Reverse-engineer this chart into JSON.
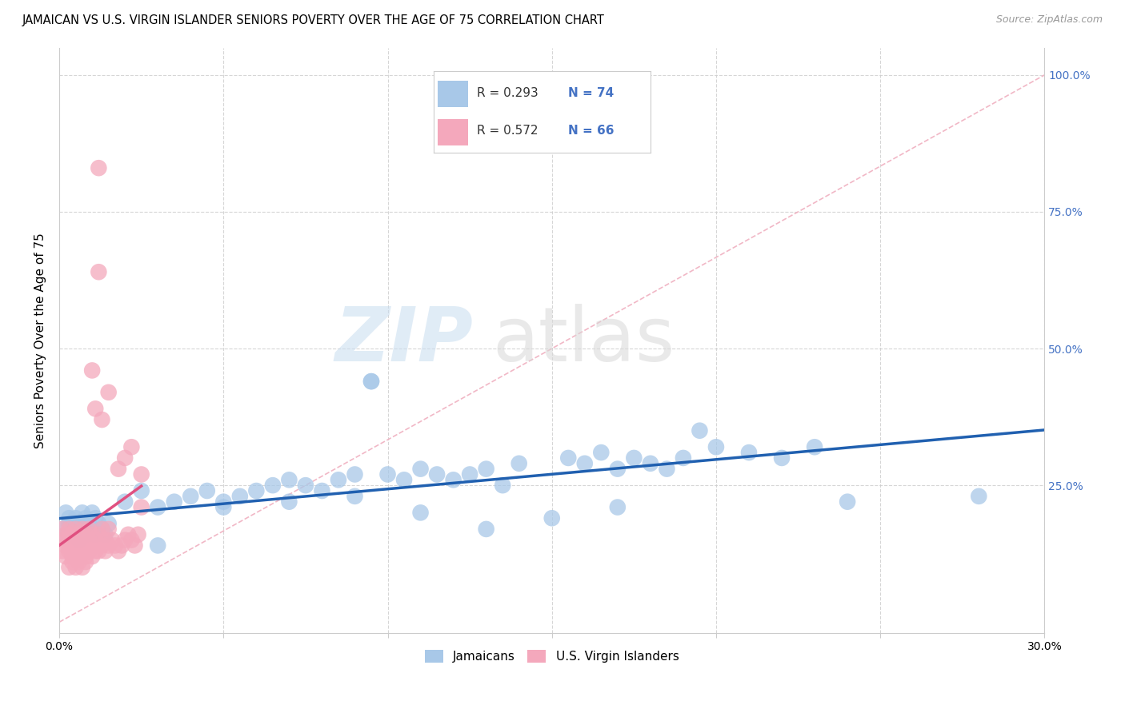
{
  "title": "JAMAICAN VS U.S. VIRGIN ISLANDER SENIORS POVERTY OVER THE AGE OF 75 CORRELATION CHART",
  "source": "Source: ZipAtlas.com",
  "ylabel": "Seniors Poverty Over the Age of 75",
  "xlim": [
    0.0,
    0.3
  ],
  "ylim": [
    -0.02,
    1.05
  ],
  "legend_r1": "R = 0.293",
  "legend_n1": "N = 74",
  "legend_r2": "R = 0.572",
  "legend_n2": "N = 66",
  "watermark_zip": "ZIP",
  "watermark_atlas": "atlas",
  "blue_color": "#a8c8e8",
  "pink_color": "#f4a8bc",
  "blue_line_color": "#2060b0",
  "pink_line_color": "#e05080",
  "diag_color": "#f0b0c0",
  "title_fontsize": 10.5,
  "axis_label_fontsize": 11,
  "tick_fontsize": 10,
  "grid_color": "#cccccc",
  "background_color": "#ffffff",
  "right_tick_color": "#4472c4",
  "blue_x": [
    0.001,
    0.002,
    0.003,
    0.004,
    0.005,
    0.006,
    0.007,
    0.008,
    0.009,
    0.01,
    0.011,
    0.012,
    0.013,
    0.014,
    0.015,
    0.002,
    0.003,
    0.004,
    0.005,
    0.006,
    0.007,
    0.008,
    0.009,
    0.01,
    0.011,
    0.02,
    0.025,
    0.03,
    0.035,
    0.04,
    0.045,
    0.05,
    0.055,
    0.06,
    0.065,
    0.07,
    0.075,
    0.08,
    0.085,
    0.09,
    0.095,
    0.1,
    0.105,
    0.11,
    0.115,
    0.12,
    0.125,
    0.13,
    0.135,
    0.14,
    0.095,
    0.155,
    0.16,
    0.165,
    0.17,
    0.175,
    0.18,
    0.185,
    0.19,
    0.2,
    0.21,
    0.22,
    0.23,
    0.24,
    0.195,
    0.17,
    0.15,
    0.13,
    0.11,
    0.09,
    0.07,
    0.05,
    0.03,
    0.28
  ],
  "blue_y": [
    0.17,
    0.16,
    0.18,
    0.17,
    0.16,
    0.15,
    0.17,
    0.16,
    0.18,
    0.17,
    0.16,
    0.18,
    0.17,
    0.16,
    0.18,
    0.2,
    0.19,
    0.18,
    0.19,
    0.18,
    0.2,
    0.19,
    0.17,
    0.2,
    0.19,
    0.22,
    0.24,
    0.21,
    0.22,
    0.23,
    0.24,
    0.22,
    0.23,
    0.24,
    0.25,
    0.26,
    0.25,
    0.24,
    0.26,
    0.27,
    0.44,
    0.27,
    0.26,
    0.28,
    0.27,
    0.26,
    0.27,
    0.28,
    0.25,
    0.29,
    0.44,
    0.3,
    0.29,
    0.31,
    0.28,
    0.3,
    0.29,
    0.28,
    0.3,
    0.32,
    0.31,
    0.3,
    0.32,
    0.22,
    0.35,
    0.21,
    0.19,
    0.17,
    0.2,
    0.23,
    0.22,
    0.21,
    0.14,
    0.23
  ],
  "pink_x": [
    0.001,
    0.001,
    0.001,
    0.002,
    0.002,
    0.002,
    0.003,
    0.003,
    0.003,
    0.004,
    0.004,
    0.004,
    0.005,
    0.005,
    0.005,
    0.006,
    0.006,
    0.006,
    0.007,
    0.007,
    0.007,
    0.008,
    0.008,
    0.008,
    0.009,
    0.009,
    0.009,
    0.01,
    0.01,
    0.01,
    0.011,
    0.011,
    0.012,
    0.012,
    0.013,
    0.013,
    0.014,
    0.014,
    0.015,
    0.015,
    0.016,
    0.017,
    0.018,
    0.019,
    0.02,
    0.021,
    0.022,
    0.023,
    0.024,
    0.025,
    0.003,
    0.004,
    0.005,
    0.006,
    0.007,
    0.008,
    0.025,
    0.02,
    0.018,
    0.022,
    0.013,
    0.015,
    0.01,
    0.011,
    0.012,
    0.012
  ],
  "pink_y": [
    0.13,
    0.15,
    0.17,
    0.12,
    0.14,
    0.16,
    0.13,
    0.15,
    0.17,
    0.12,
    0.14,
    0.16,
    0.13,
    0.15,
    0.17,
    0.12,
    0.14,
    0.16,
    0.13,
    0.15,
    0.17,
    0.12,
    0.14,
    0.16,
    0.13,
    0.15,
    0.17,
    0.12,
    0.14,
    0.16,
    0.13,
    0.15,
    0.13,
    0.16,
    0.14,
    0.17,
    0.13,
    0.15,
    0.14,
    0.17,
    0.15,
    0.14,
    0.13,
    0.14,
    0.15,
    0.16,
    0.15,
    0.14,
    0.16,
    0.21,
    0.1,
    0.11,
    0.1,
    0.11,
    0.1,
    0.11,
    0.27,
    0.3,
    0.28,
    0.32,
    0.37,
    0.42,
    0.46,
    0.39,
    0.64,
    0.83
  ]
}
